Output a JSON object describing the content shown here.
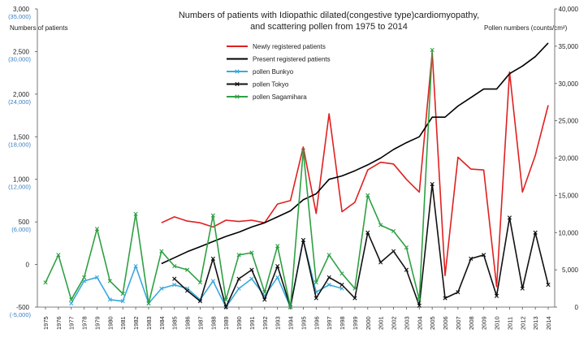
{
  "chart_data": {
    "type": "line",
    "title_lines": [
      "Numbers of patients with Idiopathic dilated(congestive type)cardiomyopathy,",
      "and scattering pollen from 1975 to 2014"
    ],
    "y_left_label": "Numbers of patients",
    "y_right_label": "Pollen numbers (counts/cm²)",
    "y_left": {
      "min": -500,
      "max": 3000,
      "ticks": [
        -500,
        0,
        500,
        1000,
        1500,
        2000,
        2500,
        3000
      ],
      "tick_labels": [
        "-500",
        "0",
        "500",
        "1,000",
        "1,500",
        "2,000",
        "2,500",
        "3,000"
      ],
      "alt_labels": [
        "(-5,000)",
        "",
        "(6,000)",
        "(12,000)",
        "(18,000)",
        "(24,000)",
        "(30,000)",
        "(35,000)"
      ]
    },
    "y_right": {
      "min": 0,
      "max": 40000,
      "ticks": [
        0,
        5000,
        10000,
        15000,
        20000,
        25000,
        30000,
        35000,
        40000
      ],
      "tick_labels": [
        "0",
        "5,000",
        "10,000",
        "15,000",
        "20,000",
        "25,000",
        "30,000",
        "35,000",
        "40,000"
      ]
    },
    "categories": [
      "1975",
      "1976",
      "1977",
      "1978",
      "1979",
      "1980",
      "1981",
      "1982",
      "1983",
      "1984",
      "1985",
      "1986",
      "1987",
      "1988",
      "1989",
      "1990",
      "1991",
      "1992",
      "1993",
      "1994",
      "1995",
      "1996",
      "1997",
      "1998",
      "1999",
      "2000",
      "2001",
      "2002",
      "2003",
      "2004",
      "2005",
      "2006",
      "2007",
      "2008",
      "2009",
      "2010",
      "2011",
      "2012",
      "2013",
      "2014"
    ],
    "grid": false,
    "legend_position": "top-center",
    "series": [
      {
        "name": "Newly registered patients",
        "axis": "left",
        "color": "#e02020",
        "marker": "none",
        "values": [
          null,
          null,
          null,
          null,
          null,
          null,
          null,
          null,
          null,
          490,
          560,
          510,
          490,
          440,
          520,
          505,
          520,
          490,
          710,
          750,
          1380,
          600,
          1770,
          620,
          730,
          1110,
          1200,
          1180,
          1000,
          850,
          2490,
          -130,
          1260,
          1120,
          1110,
          -260,
          2260,
          850,
          1280,
          1870
        ]
      },
      {
        "name": "Present registered patients",
        "axis": "left",
        "color": "#000000",
        "marker": "none",
        "values": [
          null,
          null,
          null,
          null,
          null,
          null,
          null,
          null,
          null,
          10,
          80,
          150,
          210,
          270,
          330,
          380,
          440,
          490,
          560,
          630,
          760,
          830,
          1000,
          1040,
          1100,
          1170,
          1250,
          1350,
          1430,
          1500,
          1730,
          1730,
          1860,
          1960,
          2060,
          2060,
          2240,
          2330,
          2440,
          2600
        ]
      },
      {
        "name": "pollen Bunkyo",
        "axis": "right",
        "color": "#3aa9dc",
        "marker": "x",
        "values": [
          null,
          null,
          500,
          3500,
          4000,
          1000,
          800,
          5500,
          500,
          2500,
          3000,
          2500,
          1000,
          3500,
          0,
          2500,
          3800,
          1500,
          4000,
          0,
          9000,
          2000,
          3000,
          2500,
          null,
          null,
          null,
          null,
          null,
          null,
          null,
          null,
          null,
          null,
          null,
          null,
          null,
          null,
          null,
          null
        ]
      },
      {
        "name": "pollen Tokyo",
        "axis": "right",
        "color": "#111111",
        "marker": "x",
        "values": [
          null,
          null,
          null,
          null,
          null,
          null,
          null,
          null,
          null,
          null,
          3800,
          2200,
          800,
          6500,
          0,
          3800,
          5000,
          1000,
          5500,
          0,
          9000,
          1200,
          4000,
          3000,
          1200,
          10000,
          6000,
          7500,
          5000,
          200,
          16500,
          1200,
          2000,
          6500,
          7000,
          1500,
          12000,
          2500,
          10000,
          3000
        ]
      },
      {
        "name": "pollen Sagamihara",
        "axis": "right",
        "color": "#2ea043",
        "marker": "x",
        "values": [
          3300,
          7000,
          1000,
          4000,
          10500,
          3500,
          1800,
          12500,
          500,
          7500,
          5500,
          5000,
          3300,
          12300,
          1000,
          7000,
          7300,
          2000,
          8200,
          0,
          21000,
          3300,
          7000,
          4500,
          2500,
          15000,
          11000,
          10200,
          8000,
          1000,
          34500,
          null,
          null,
          null,
          null,
          null,
          null,
          null,
          null,
          null
        ]
      }
    ]
  }
}
